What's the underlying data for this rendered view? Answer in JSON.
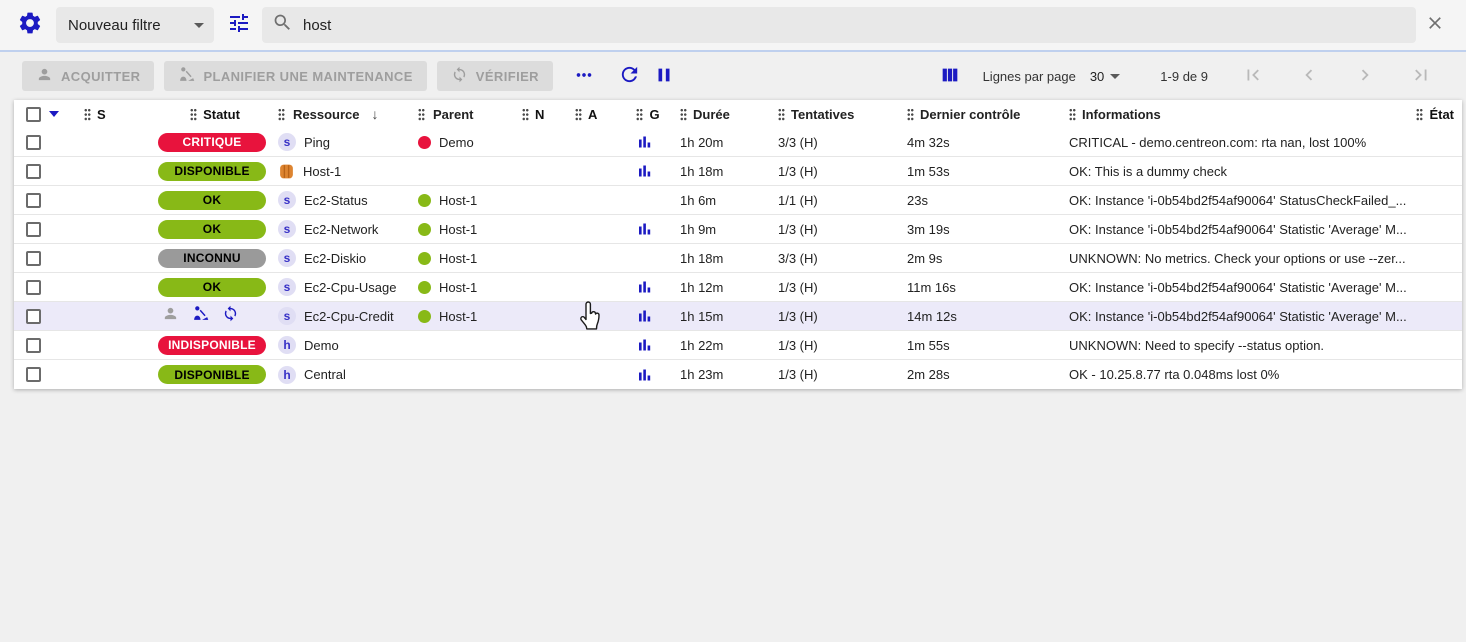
{
  "colors": {
    "primary": "#1c1ac2",
    "critical": "#e8133d",
    "ok": "#88b917",
    "unknown": "#9a9a9a",
    "hover_row": "#eceaf9",
    "disabled_icon": "#9e9e9e",
    "pagination_disabled": "#b9b9b9"
  },
  "filter_bar": {
    "filter_select_value": "Nouveau filtre",
    "search_value": "host"
  },
  "toolbar": {
    "acknowledge_label": "ACQUITTER",
    "downtime_label": "PLANIFIER UNE MAINTENANCE",
    "check_label": "VÉRIFIER",
    "rows_per_page_label": "Lignes par page",
    "rows_per_page_value": "30",
    "pagination_range": "1-9 de 9"
  },
  "table": {
    "columns": [
      {
        "id": "severity",
        "label": "S"
      },
      {
        "id": "status",
        "label": "Statut"
      },
      {
        "id": "resource",
        "label": "Ressource",
        "sorted": "desc"
      },
      {
        "id": "parent",
        "label": "Parent"
      },
      {
        "id": "notes",
        "label": "N"
      },
      {
        "id": "action",
        "label": "A"
      },
      {
        "id": "graph",
        "label": "G"
      },
      {
        "id": "duration",
        "label": "Durée"
      },
      {
        "id": "tries",
        "label": "Tentatives"
      },
      {
        "id": "last_check",
        "label": "Dernier contrôle"
      },
      {
        "id": "information",
        "label": "Informations"
      },
      {
        "id": "state",
        "label": "État"
      }
    ],
    "rows": [
      {
        "status": "CRITIQUE",
        "status_severity": "critical",
        "type": "s",
        "resource": "Ping",
        "parent": "Demo",
        "parent_severity": "critical",
        "graph": true,
        "duration": "1h 20m",
        "tries": "3/3 (H)",
        "last_check": "4m 32s",
        "information": "CRITICAL - demo.centreon.com: rta nan, lost 100%"
      },
      {
        "status": "DISPONIBLE",
        "status_severity": "ok",
        "type": "aws",
        "resource": "Host-1",
        "parent": "",
        "graph": true,
        "duration": "1h 18m",
        "tries": "1/3 (H)",
        "last_check": "1m 53s",
        "information": "OK: This is a dummy check"
      },
      {
        "status": "OK",
        "status_severity": "ok",
        "type": "s",
        "resource": "Ec2-Status",
        "parent": "Host-1",
        "parent_severity": "ok",
        "graph": false,
        "duration": "1h 6m",
        "tries": "1/1 (H)",
        "last_check": "23s",
        "information": "OK: Instance 'i-0b54bd2f54af90064' StatusCheckFailed_..."
      },
      {
        "status": "OK",
        "status_severity": "ok",
        "type": "s",
        "resource": "Ec2-Network",
        "parent": "Host-1",
        "parent_severity": "ok",
        "graph": true,
        "duration": "1h 9m",
        "tries": "1/3 (H)",
        "last_check": "3m 19s",
        "information": "OK: Instance 'i-0b54bd2f54af90064' Statistic 'Average' M..."
      },
      {
        "status": "INCONNU",
        "status_severity": "unknown",
        "type": "s",
        "resource": "Ec2-Diskio",
        "parent": "Host-1",
        "parent_severity": "ok",
        "graph": false,
        "duration": "1h 18m",
        "tries": "3/3 (H)",
        "last_check": "2m 9s",
        "information": "UNKNOWN: No metrics. Check your options or use --zer..."
      },
      {
        "status": "OK",
        "status_severity": "ok",
        "type": "s",
        "resource": "Ec2-Cpu-Usage",
        "parent": "Host-1",
        "parent_severity": "ok",
        "graph": true,
        "duration": "1h 12m",
        "tries": "1/3 (H)",
        "last_check": "11m 16s",
        "information": "OK: Instance 'i-0b54bd2f54af90064' Statistic 'Average' M..."
      },
      {
        "status": "",
        "hover": true,
        "hover_actions": [
          "acknowledge",
          "downtime",
          "check"
        ],
        "type": "s",
        "resource": "Ec2-Cpu-Credit",
        "parent": "Host-1",
        "parent_severity": "ok",
        "graph": true,
        "duration": "1h 15m",
        "tries": "1/3 (H)",
        "last_check": "14m 12s",
        "information": "OK: Instance 'i-0b54bd2f54af90064' Statistic 'Average' M..."
      },
      {
        "status": "INDISPONIBLE",
        "status_severity": "critical",
        "type": "h",
        "resource": "Demo",
        "parent": "",
        "graph": true,
        "duration": "1h 22m",
        "tries": "1/3 (H)",
        "last_check": "1m 55s",
        "information": "UNKNOWN: Need to specify --status option."
      },
      {
        "status": "DISPONIBLE",
        "status_severity": "ok",
        "type": "h",
        "resource": "Central",
        "parent": "",
        "graph": true,
        "duration": "1h 23m",
        "tries": "1/3 (H)",
        "last_check": "2m 28s",
        "information": "OK - 10.25.8.77 rta 0.048ms lost 0%"
      }
    ]
  }
}
